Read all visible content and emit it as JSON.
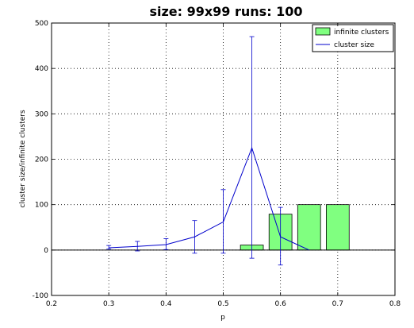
{
  "chart_data": {
    "type": "bar",
    "title": "size: 99x99 runs: 100",
    "xlabel": "p",
    "ylabel": "cluster size/infinite clusters",
    "xlim": [
      0.2,
      0.8
    ],
    "ylim": [
      -100,
      500
    ],
    "xticks": [
      "0.2",
      "0.3",
      "0.4",
      "0.5",
      "0.6",
      "0.7",
      "0.8"
    ],
    "yticks": [
      "-100",
      "0",
      "100",
      "200",
      "300",
      "400",
      "500"
    ],
    "grid": true,
    "legend_position": "top-right",
    "colors": {
      "bars": "#80ff80",
      "line": "#0000cc",
      "grid": "#000000"
    },
    "series": [
      {
        "name": "infinite clusters",
        "type": "bar",
        "x": [
          0.55,
          0.6,
          0.65,
          0.7
        ],
        "values": [
          11,
          79,
          100,
          100
        ]
      },
      {
        "name": "cluster size",
        "type": "line",
        "x": [
          0.3,
          0.35,
          0.4,
          0.45,
          0.5,
          0.55,
          0.6,
          0.65
        ],
        "values": [
          5,
          8,
          12,
          29,
          62,
          225,
          29,
          0
        ],
        "err_low": [
          2,
          -2,
          1,
          -7,
          -7,
          -18,
          -33,
          0
        ],
        "err_high": [
          10,
          19,
          25,
          65,
          133,
          470,
          94,
          0
        ]
      }
    ]
  }
}
